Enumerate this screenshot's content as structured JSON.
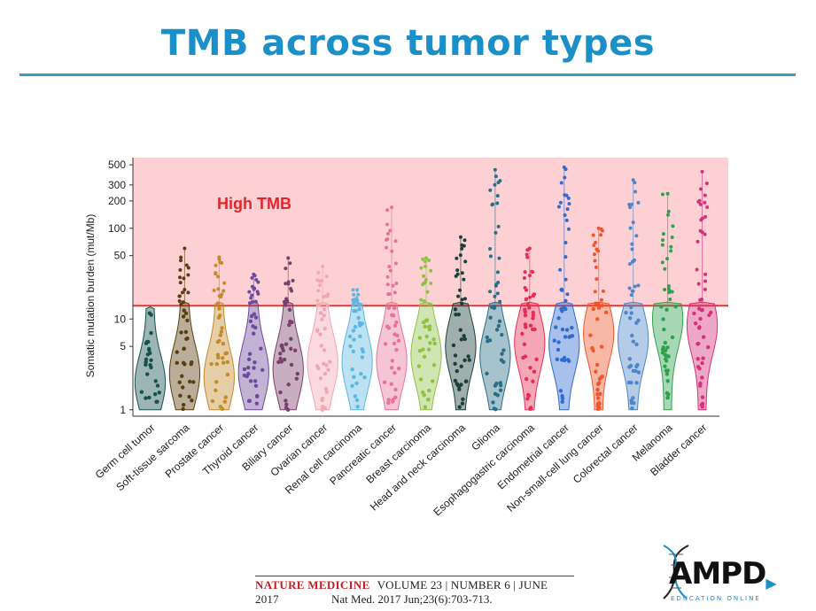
{
  "slide": {
    "title": "TMB across tumor types"
  },
  "citation": {
    "journal": "NATURE MEDICINE",
    "issue": "VOLUME 23 | NUMBER 6 | JUNE 2017",
    "reference": "Nat  Med. 2017 Jun;23(6):703-713."
  },
  "logo": {
    "text": "AMP",
    "text_end": "D",
    "subtitle": "EDUCATION ONLINE"
  },
  "chart_data": {
    "type": "violin",
    "ylabel": "Somatic mutation burden (mut/Mb)",
    "yscale": "log",
    "ylim": [
      0.85,
      600
    ],
    "yticks": [
      1,
      5,
      10,
      50,
      100,
      200,
      300,
      500
    ],
    "threshold": 14,
    "high_region_label": "High TMB",
    "colors": {
      "high_region": "#fdd1d3",
      "threshold_line": "#e0383a",
      "label": "#e5232a"
    },
    "categories": [
      {
        "name": "Germ cell tumor",
        "color": "#16514f",
        "median": 2.0,
        "max": 13
      },
      {
        "name": "Soft-tissue sarcoma",
        "color": "#5a3e10",
        "median": 2.5,
        "max": 60
      },
      {
        "name": "Prostate cancer",
        "color": "#c48a2b",
        "median": 2.3,
        "max": 48
      },
      {
        "name": "Thyroid cancer",
        "color": "#6d4a9c",
        "median": 2.6,
        "max": 31
      },
      {
        "name": "Biliary cancer",
        "color": "#7a3f6c",
        "median": 2.8,
        "max": 47
      },
      {
        "name": "Ovarian cancer",
        "color": "#f2a6b4",
        "median": 3.3,
        "max": 38
      },
      {
        "name": "Renal cell carcinoma",
        "color": "#5cb7e0",
        "median": 3.4,
        "max": 21
      },
      {
        "name": "Pancreatic cancer",
        "color": "#e6739a",
        "median": 3.5,
        "max": 170
      },
      {
        "name": "Breast carcinoma",
        "color": "#8fc145",
        "median": 4.0,
        "max": 47
      },
      {
        "name": "Head and neck carcinoma",
        "color": "#1d3f3b",
        "median": 5.0,
        "max": 80
      },
      {
        "name": "Glioma",
        "color": "#2a6d86",
        "median": 3.9,
        "max": 440
      },
      {
        "name": "Esophagogastric carcinoma",
        "color": "#e62e54",
        "median": 5.5,
        "max": 60
      },
      {
        "name": "Endometrial cancer",
        "color": "#2f6bd0",
        "median": 5.3,
        "max": 470
      },
      {
        "name": "Non-small-cell lung cancer",
        "color": "#f0562b",
        "median": 7.0,
        "max": 100
      },
      {
        "name": "Colorectal cancer",
        "color": "#4f86c9",
        "median": 6.0,
        "max": 340
      },
      {
        "name": "Melanoma",
        "color": "#2fa04e",
        "median": 10.0,
        "max": 240
      },
      {
        "name": "Bladder cancer",
        "color": "#d6307a",
        "median": 8.5,
        "max": 420
      }
    ]
  }
}
